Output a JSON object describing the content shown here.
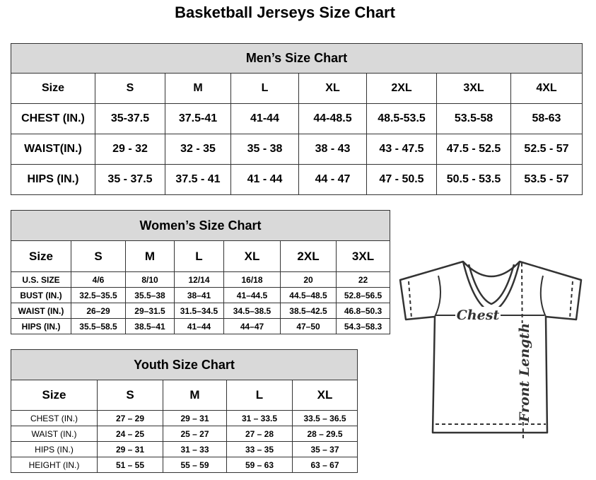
{
  "title": "Basketball Jerseys Size Chart",
  "men": {
    "heading": "Men’s Size Chart",
    "columns": [
      "Size",
      "S",
      "M",
      "L",
      "XL",
      "2XL",
      "3XL",
      "4XL"
    ],
    "rows": [
      [
        "CHEST (IN.)",
        "35-37.5",
        "37.5-41",
        "41-44",
        "44-48.5",
        "48.5-53.5",
        "53.5-58",
        "58-63"
      ],
      [
        "WAIST(IN.)",
        "29 - 32",
        "32 - 35",
        "35 - 38",
        "38 - 43",
        "43 - 47.5",
        "47.5 - 52.5",
        "52.5 - 57"
      ],
      [
        "HIPS (IN.)",
        "35 - 37.5",
        "37.5 - 41",
        "41 - 44",
        "44 - 47",
        "47 - 50.5",
        "50.5 - 53.5",
        "53.5 - 57"
      ]
    ]
  },
  "women": {
    "heading": "Women’s Size Chart",
    "columns": [
      "Size",
      "S",
      "M",
      "L",
      "XL",
      "2XL",
      "3XL"
    ],
    "rows": [
      [
        "U.S.  SIZE",
        "4/6",
        "8/10",
        "12/14",
        "16/18",
        "20",
        "22"
      ],
      [
        "BUST  (IN.)",
        "32.5–35.5",
        "35.5–38",
        "38–41",
        "41–44.5",
        "44.5–48.5",
        "52.8–56.5"
      ],
      [
        "WAIST  (IN.)",
        "26–29",
        "29–31.5",
        "31.5–34.5",
        "34.5–38.5",
        "38.5–42.5",
        "46.8–50.3"
      ],
      [
        "HIPS  (IN.)",
        "35.5–58.5",
        "38.5–41",
        "41–44",
        "44–47",
        "47–50",
        "54.3–58.3"
      ]
    ]
  },
  "youth": {
    "heading": "Youth Size Chart",
    "columns": [
      "Size",
      "S",
      "M",
      "L",
      "XL"
    ],
    "rows": [
      [
        "CHEST  (IN.)",
        "27  –  29",
        "29  –  31",
        "31  –  33.5",
        "33.5  –  36.5"
      ],
      [
        "WAIST  (IN.)",
        "24  –  25",
        "25  –  27",
        "27  –  28",
        "28  –  29.5"
      ],
      [
        "HIPS  (IN.)",
        "29  –  31",
        "31  –  33",
        "33  –  35",
        "35  –  37"
      ],
      [
        "HEIGHT  (IN.)",
        "51  –  55",
        "55  –  59",
        "59  –  63",
        "63  –  67"
      ]
    ]
  },
  "diagram": {
    "chest_label": "Chest",
    "length_label": "Front Length"
  }
}
